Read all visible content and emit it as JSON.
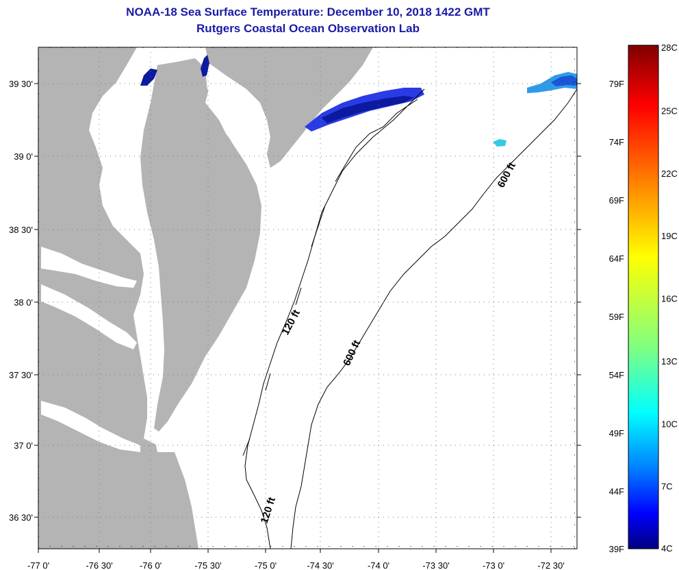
{
  "header": {
    "title_line1": "NOAA-18 Sea Surface Temperature:  December 10, 2018 1422 GMT",
    "title_line2": "Rutgers Coastal Ocean Observation Lab"
  },
  "map": {
    "region": "Mid-Atlantic Bight: Chesapeake Bay to New Jersey shelf",
    "land_color": "#b4b4b4",
    "water_color": "#ffffff",
    "latitude_labels": [
      "39 30'",
      "39 0'",
      "38 30'",
      "38 0'",
      "37 30'",
      "37 0'",
      "36 30'"
    ],
    "longitude_labels": [
      "-77 0'",
      "-76 30'",
      "-76 0'",
      "-75 30'",
      "-75 0'",
      "-74 30'",
      "-74 0'",
      "-73 30'",
      "-73 0'",
      "-72 30'"
    ],
    "contours": [
      {
        "label": "120 ft"
      },
      {
        "label": "600 ft"
      },
      {
        "label": "600 ft"
      },
      {
        "label": "120 ft"
      }
    ],
    "sst_patches": [
      {
        "name": "new-jersey-coastal-patch",
        "color": "#2a3be6"
      },
      {
        "name": "north-bay-patch",
        "color": "#0b1a9e"
      },
      {
        "name": "offshore-northeast-patch",
        "color": "#2f9be8"
      },
      {
        "name": "offshore-small-patch",
        "color": "#37c9e8"
      }
    ]
  },
  "colorbar": {
    "celsius_labels": [
      "28C",
      "25C",
      "22C",
      "19C",
      "16C",
      "13C",
      "10C",
      "7C",
      "4C"
    ],
    "fahrenheit_labels": [
      "79F",
      "74F",
      "69F",
      "64F",
      "59F",
      "54F",
      "49F",
      "44F",
      "39F"
    ],
    "colors": [
      "#7f0000",
      "#ff0000",
      "#ff8000",
      "#ffff00",
      "#80ff80",
      "#00ffff",
      "#0080ff",
      "#0000ff",
      "#00007f"
    ]
  }
}
